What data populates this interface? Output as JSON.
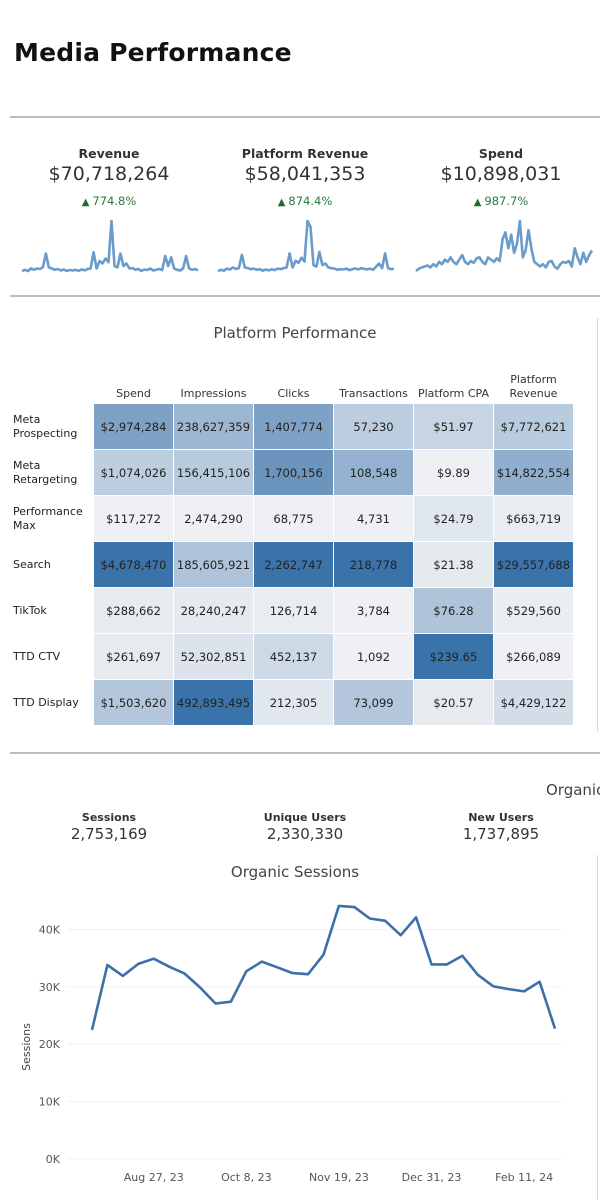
{
  "page": {
    "title": "Media Performance"
  },
  "kpis": [
    {
      "label": "Revenue",
      "value": "$70,718,264",
      "delta": "774.8%",
      "direction": "up"
    },
    {
      "label": "Platform Revenue",
      "value": "$58,041,353",
      "delta": "874.4%",
      "direction": "up"
    },
    {
      "label": "Spend",
      "value": "$10,898,031",
      "delta": "987.7%",
      "direction": "up"
    }
  ],
  "colors": {
    "positive": "#2a7a3e",
    "sparkline": "#6a9ccb",
    "line": "#3d6fa8",
    "heat_low": "#eef0f3",
    "heat_high": "#3a72aa"
  },
  "platform_table": {
    "title": "Platform Performance",
    "columns": [
      "Spend",
      "Impressions",
      "Clicks",
      "Transactions",
      "Platform CPA",
      "Platform Revenue"
    ],
    "rows": [
      {
        "label": "Meta Prospecting",
        "cells": [
          "$2,974,284",
          "238,627,359",
          "1,407,774",
          "57,230",
          "$51.97",
          "$7,772,621"
        ],
        "intensity": [
          0.62,
          0.45,
          0.62,
          0.28,
          0.22,
          0.3
        ]
      },
      {
        "label": "Meta Retargeting",
        "cells": [
          "$1,074,026",
          "156,415,106",
          "1,700,156",
          "108,548",
          "$9.89",
          "$14,822,554"
        ],
        "intensity": [
          0.28,
          0.3,
          0.72,
          0.5,
          0.0,
          0.52
        ]
      },
      {
        "label": "Performance Max",
        "cells": [
          "$117,272",
          "2,474,290",
          "68,775",
          "4,731",
          "$24.79",
          "$663,719"
        ],
        "intensity": [
          0.0,
          0.0,
          0.0,
          0.0,
          0.07,
          0.02
        ]
      },
      {
        "label": "Search",
        "cells": [
          "$4,678,470",
          "185,605,921",
          "2,262,747",
          "218,778",
          "$21.38",
          "$29,557,688"
        ],
        "intensity": [
          1.0,
          0.36,
          1.0,
          1.0,
          0.05,
          1.0
        ]
      },
      {
        "label": "TikTok",
        "cells": [
          "$288,662",
          "28,240,247",
          "126,714",
          "3,784",
          "$76.28",
          "$529,560"
        ],
        "intensity": [
          0.04,
          0.05,
          0.03,
          0.0,
          0.35,
          0.02
        ]
      },
      {
        "label": "TTD CTV",
        "cells": [
          "$261,697",
          "52,302,851",
          "452,137",
          "1,092",
          "$239.65",
          "$266,089"
        ],
        "intensity": [
          0.04,
          0.1,
          0.18,
          0.0,
          1.0,
          0.0
        ]
      },
      {
        "label": "TTD Display",
        "cells": [
          "$1,503,620",
          "492,893,495",
          "212,305",
          "73,099",
          "$20.57",
          "$4,429,122"
        ],
        "intensity": [
          0.33,
          1.0,
          0.07,
          0.33,
          0.04,
          0.15
        ]
      }
    ]
  },
  "organic": {
    "cut_title": "Organic",
    "stats": [
      {
        "label": "Sessions",
        "value": "2,753,169"
      },
      {
        "label": "Unique Users",
        "value": "2,330,330"
      },
      {
        "label": "New Users",
        "value": "1,737,895"
      }
    ]
  },
  "chart_data": {
    "type": "line",
    "title": "Organic Sessions",
    "xlabel": "",
    "ylabel": "Sessions",
    "ylim": [
      0,
      46000
    ],
    "yticks": [
      0,
      10000,
      20000,
      30000,
      40000
    ],
    "ytick_labels": [
      "0K",
      "10K",
      "20K",
      "30K",
      "40K"
    ],
    "xtick_labels": [
      "Aug 27, 23",
      "Oct 8, 23",
      "Nov 19, 23",
      "Dec 31, 23",
      "Feb 11, 24"
    ],
    "xtick_index": [
      4,
      10,
      16,
      22,
      28
    ],
    "grid": true,
    "series": [
      {
        "name": "Sessions",
        "x": [
          "Jul 30, 23",
          "Aug 6, 23",
          "Aug 13, 23",
          "Aug 20, 23",
          "Aug 27, 23",
          "Sep 3, 23",
          "Sep 10, 23",
          "Sep 17, 23",
          "Sep 24, 23",
          "Oct 1, 23",
          "Oct 8, 23",
          "Oct 15, 23",
          "Oct 22, 23",
          "Oct 29, 23",
          "Nov 5, 23",
          "Nov 12, 23",
          "Nov 19, 23",
          "Nov 26, 23",
          "Dec 3, 23",
          "Dec 10, 23",
          "Dec 17, 23",
          "Dec 24, 23",
          "Dec 31, 23",
          "Jan 7, 24",
          "Jan 14, 24",
          "Jan 21, 24",
          "Jan 28, 24",
          "Feb 4, 24",
          "Feb 11, 24",
          "Feb 18, 24",
          "Feb 25, 24"
        ],
        "values": [
          22500,
          33800,
          31900,
          34000,
          34900,
          33500,
          32300,
          29900,
          27100,
          27400,
          32700,
          34400,
          33400,
          32400,
          32200,
          35600,
          44100,
          43900,
          41900,
          41500,
          39000,
          42100,
          33900,
          33900,
          35400,
          32100,
          30100,
          29600,
          29200,
          30900,
          22700
        ]
      }
    ]
  },
  "sparklines": [
    {
      "name": "Revenue",
      "values": [
        2,
        2.5,
        2,
        3,
        2.5,
        3,
        2.8,
        3.5,
        9,
        3.5,
        3,
        2.5,
        2.8,
        2.2,
        2.6,
        2,
        2.4,
        2.2,
        2.5,
        2.1,
        2.6,
        2.3,
        2.8,
        3,
        9.5,
        3,
        6,
        5,
        7,
        5.5,
        22,
        4,
        3.5,
        9,
        4,
        5,
        3,
        3.2,
        2.5,
        2.8,
        2,
        2.6,
        2.4,
        3,
        2.2,
        2.5,
        2.8,
        2.4,
        8,
        4,
        7.5,
        3,
        2.5,
        2.2,
        3,
        8,
        3,
        2.5,
        2.8,
        2.3
      ]
    },
    {
      "name": "Platform Revenue",
      "values": [
        2,
        2.4,
        2.1,
        2.8,
        2.5,
        3.2,
        2.7,
        3,
        7.5,
        3.2,
        3,
        2.6,
        2.8,
        2.4,
        2.6,
        2.1,
        2.5,
        2.2,
        2.6,
        2.3,
        2.8,
        2.6,
        3,
        3.2,
        8,
        3.2,
        5.5,
        4.8,
        6.5,
        5.2,
        19,
        17,
        4,
        3.5,
        8.5,
        4,
        4.5,
        3.2,
        3,
        2.8,
        2.4,
        2.6,
        2.5,
        2.8,
        2.3,
        2.6,
        2.9,
        2.5,
        3,
        2.7,
        2.5,
        2.8,
        2.4,
        3.5,
        4.5,
        3,
        8,
        3,
        2.6,
        2.8
      ]
    },
    {
      "name": "Spend",
      "values": [
        4,
        4.5,
        4.8,
        5,
        5.2,
        4.8,
        5.5,
        5,
        6,
        5.5,
        6.5,
        6,
        7,
        6,
        5.5,
        6.5,
        7.5,
        6,
        5.5,
        6.2,
        5.8,
        6.8,
        7,
        6,
        5.5,
        7,
        6.5,
        6,
        6.8,
        6.2,
        11,
        12.5,
        9,
        12,
        8,
        10,
        15,
        7,
        8.5,
        13,
        9,
        6,
        5.5,
        5,
        5.5,
        4.8,
        6,
        6.2,
        5,
        4.5,
        5.5,
        6,
        5.8,
        6.2,
        5,
        9,
        7,
        5.5,
        8,
        6,
        7.5,
        8.5
      ]
    }
  ]
}
